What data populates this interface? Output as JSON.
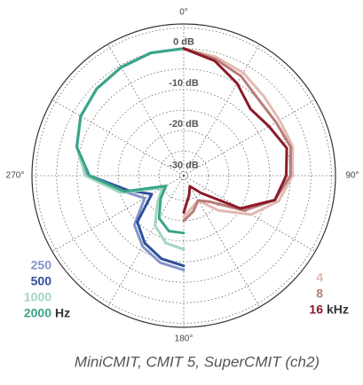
{
  "chart_data": {
    "type": "polar",
    "caption": "MiniCMIT, CMIT 5, SuperCMIT (ch2)",
    "rlim": [
      -31,
      6
    ],
    "rticks": [
      {
        "value": 0,
        "label": "0 dB"
      },
      {
        "value": -10,
        "label": "-10 dB"
      },
      {
        "value": -20,
        "label": "-20 dB"
      },
      {
        "value": -30,
        "label": "-30 dB"
      }
    ],
    "r_gridlines": [
      -30,
      -25,
      -20,
      -15,
      -10,
      -5,
      0,
      5
    ],
    "angle_ticks": [
      {
        "value": 0,
        "label": "0°"
      },
      {
        "value": 90,
        "label": "90°"
      },
      {
        "value": 180,
        "label": "180°"
      },
      {
        "value": 270,
        "label": "270°"
      }
    ],
    "angle_gridlines": [
      0,
      30,
      60,
      90,
      120,
      150,
      180,
      210,
      240,
      270,
      300,
      330
    ],
    "grid": true,
    "legend_units": [
      {
        "side": "left",
        "text": "Hz"
      },
      {
        "side": "right",
        "text": "kHz"
      }
    ],
    "series": [
      {
        "name": "250",
        "side": "left",
        "color": "#8494c9",
        "angles": [
          180,
          195,
          210,
          225,
          240,
          255,
          270,
          285,
          300,
          315,
          330,
          345,
          360
        ],
        "values": [
          -8,
          -9,
          -11,
          -14,
          -20,
          -16,
          -7.5,
          -4,
          -2,
          -1,
          -0.5,
          0,
          0
        ]
      },
      {
        "name": "500",
        "side": "left",
        "color": "#2f4f9c",
        "angles": [
          180,
          195,
          210,
          225,
          240,
          255,
          270,
          285,
          300,
          315,
          330,
          345,
          360
        ],
        "values": [
          -9,
          -10,
          -12,
          -15,
          -22,
          -17,
          -8,
          -4,
          -2,
          -1,
          -0.5,
          0,
          0
        ]
      },
      {
        "name": "1000",
        "side": "left",
        "color": "#a2d6c2",
        "angles": [
          180,
          195,
          210,
          225,
          240,
          255,
          270,
          285,
          300,
          315,
          330,
          345,
          360
        ],
        "values": [
          -13,
          -14,
          -17,
          -22,
          -25,
          -15,
          -7,
          -4,
          -2,
          -1,
          -0.5,
          0,
          0
        ]
      },
      {
        "name": "2000",
        "side": "left",
        "color": "#3aa58a",
        "angles": [
          180,
          195,
          210,
          225,
          240,
          255,
          270,
          285,
          300,
          315,
          330,
          345,
          360
        ],
        "values": [
          -17,
          -17,
          -19,
          -23,
          -26,
          -16,
          -8,
          -4,
          -2,
          -1,
          -0.5,
          0,
          0
        ]
      },
      {
        "name": "4",
        "side": "right",
        "color": "#e2bab2",
        "angles": [
          0,
          15,
          30,
          45,
          60,
          75,
          90,
          105,
          120,
          135,
          150,
          165,
          180
        ],
        "values": [
          0,
          -1,
          -2,
          -3.5,
          -4,
          -3.5,
          -4.5,
          -7,
          -12,
          -19,
          -24,
          -23,
          -21
        ]
      },
      {
        "name": "8",
        "side": "right",
        "color": "#b97c79",
        "angles": [
          0,
          15,
          30,
          45,
          60,
          75,
          90,
          105,
          120,
          135,
          150,
          165,
          180
        ],
        "values": [
          0,
          -1.5,
          -3,
          -5,
          -5,
          -4,
          -5,
          -8,
          -14,
          -22,
          -24,
          -22,
          -20
        ]
      },
      {
        "name": "16",
        "side": "right",
        "color": "#8c1b2b",
        "angles": [
          0,
          15,
          30,
          45,
          60,
          75,
          90,
          105,
          120,
          135,
          150,
          165,
          180
        ],
        "values": [
          0,
          -2,
          -5,
          -8,
          -7,
          -5,
          -6,
          -8,
          -15,
          -25,
          -28,
          -26,
          -22
        ]
      }
    ]
  }
}
